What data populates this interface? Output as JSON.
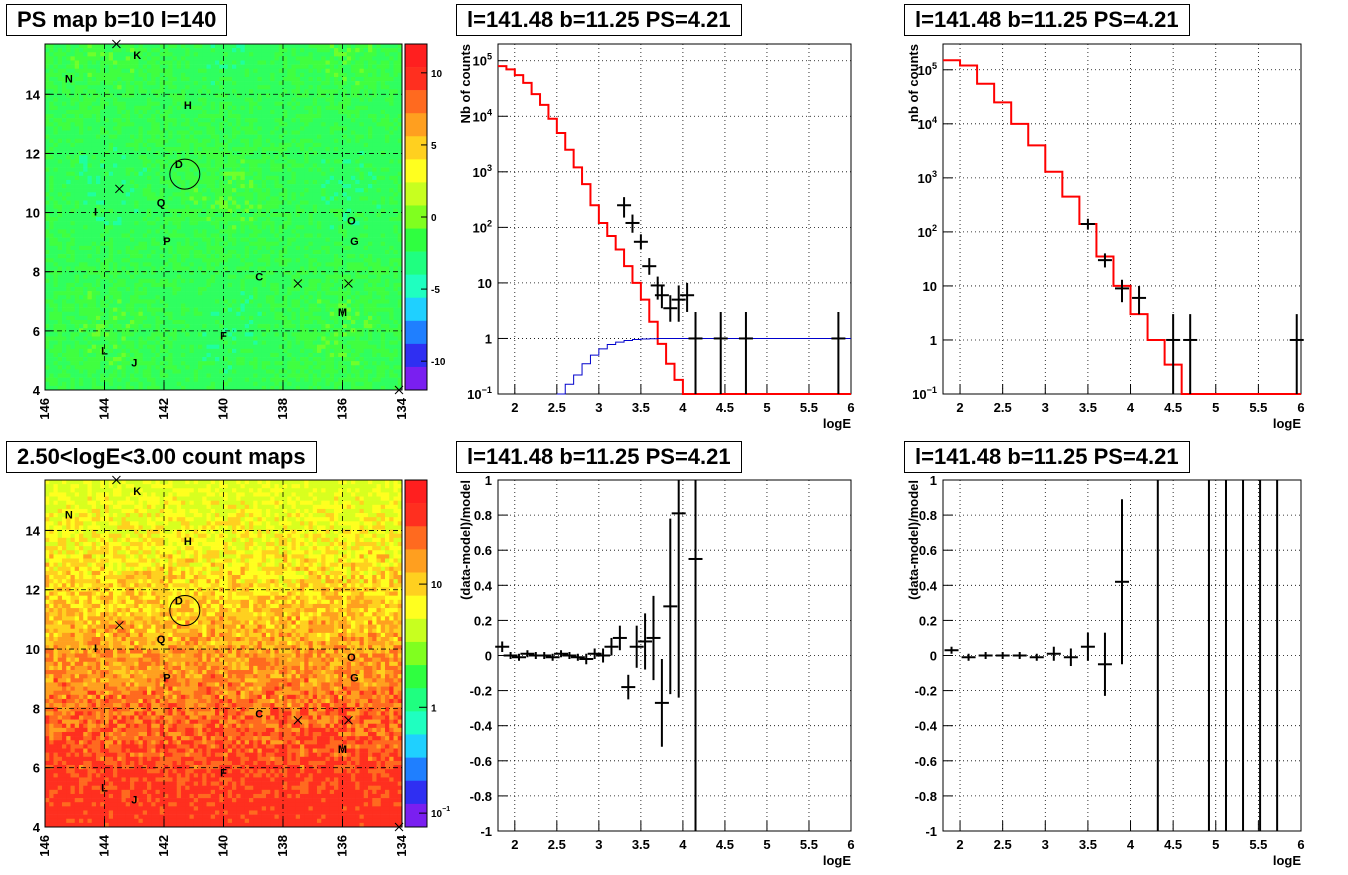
{
  "chart_data": [
    {
      "type": "heatmap",
      "title": "PS map b=10 l=140",
      "xticks": [
        "146",
        "144",
        "142",
        "140",
        "138",
        "136",
        "134"
      ],
      "yticks": [
        "4",
        "6",
        "8",
        "10",
        "12",
        "14"
      ],
      "xlim": [
        146,
        134
      ],
      "ylim": [
        4,
        15.7
      ],
      "zticks": [
        "10",
        "5",
        "0",
        "-5",
        "-10"
      ],
      "zlim": [
        -12,
        12
      ],
      "labels": [
        {
          "t": "K",
          "l": 142.9,
          "b": 15.2
        },
        {
          "t": "N",
          "l": 145.2,
          "b": 14.4
        },
        {
          "t": "H",
          "l": 141.2,
          "b": 13.5
        },
        {
          "t": "D",
          "l": 141.5,
          "b": 11.5
        },
        {
          "t": "Q",
          "l": 142.1,
          "b": 10.2
        },
        {
          "t": "I",
          "l": 144.3,
          "b": 9.9
        },
        {
          "t": "P",
          "l": 141.9,
          "b": 8.9
        },
        {
          "t": "C",
          "l": 138.8,
          "b": 7.7
        },
        {
          "t": "O",
          "l": 135.7,
          "b": 9.6
        },
        {
          "t": "G",
          "l": 135.6,
          "b": 8.9
        },
        {
          "t": "M",
          "l": 136.0,
          "b": 6.5
        },
        {
          "t": "F",
          "l": 140.0,
          "b": 5.7
        },
        {
          "t": "L",
          "l": 144.0,
          "b": 5.2
        },
        {
          "t": "J",
          "l": 143.0,
          "b": 4.8
        }
      ],
      "crosses": [
        {
          "l": 143.6,
          "b": 15.7
        },
        {
          "l": 143.5,
          "b": 10.8
        },
        {
          "l": 137.5,
          "b": 7.6
        },
        {
          "l": 135.8,
          "b": 7.6
        },
        {
          "l": 134.1,
          "b": 4.0
        }
      ],
      "circle": {
        "l": 141.3,
        "b": 11.3
      },
      "colors": [
        "#7a1ff0",
        "#2f2ff2",
        "#1f7fff",
        "#1fd0ff",
        "#1fffc0",
        "#1fff80",
        "#2fff40",
        "#80ff1f",
        "#c8ff1f",
        "#ffff1f",
        "#ffd01f",
        "#ff9f1f",
        "#ff6a1f",
        "#ff2f1f",
        "#ff1f1f"
      ]
    },
    {
      "type": "line",
      "title": "l=141.48 b=11.25 PS=4.21",
      "xlabel": "logE",
      "ylabel": "Nb of counts",
      "xlim": [
        1.8,
        6
      ],
      "ylim": [
        0.1,
        200000
      ],
      "yscale": "log",
      "xticks": [
        "2",
        "2.5",
        "3",
        "3.5",
        "4",
        "4.5",
        "5",
        "5.5",
        "6"
      ],
      "yticks": [
        "10^-1",
        "1",
        "10",
        "10^2",
        "10^3",
        "10^4",
        "10^5"
      ],
      "series": [
        {
          "style": "step",
          "color": "#ff0000",
          "x": [
            1.8,
            1.9,
            2.0,
            2.1,
            2.2,
            2.3,
            2.4,
            2.5,
            2.6,
            2.7,
            2.8,
            2.9,
            3.0,
            3.1,
            3.2,
            3.3,
            3.4,
            3.5,
            3.6,
            3.7,
            3.8,
            3.9,
            4.0,
            4.1,
            4.2,
            4.3
          ],
          "y": [
            80000,
            70000,
            55000,
            40000,
            25000,
            16000,
            9000,
            5000,
            2500,
            1200,
            600,
            250,
            120,
            70,
            40,
            20,
            10,
            5,
            2,
            0.8,
            0.35,
            0.18,
            0.1,
            0.1,
            0.1,
            0.1
          ]
        },
        {
          "style": "step",
          "color": "#0000cc",
          "x": [
            2.5,
            2.6,
            2.7,
            2.8,
            2.9,
            3.0,
            3.1,
            3.2,
            3.3,
            3.4,
            3.5,
            3.6,
            3.7,
            3.8,
            3.9,
            4.0,
            4.5,
            5.0,
            5.5,
            6.0
          ],
          "y": [
            0.1,
            0.15,
            0.22,
            0.35,
            0.5,
            0.65,
            0.78,
            0.86,
            0.92,
            0.96,
            0.98,
            0.99,
            1,
            1,
            1,
            1,
            1,
            1,
            1,
            1
          ]
        },
        {
          "style": "points",
          "color": "#000000",
          "x": [
            3.3,
            3.4,
            3.5,
            3.6,
            3.7,
            3.75,
            3.85,
            3.95,
            4.05,
            4.15,
            4.45,
            4.75,
            5.85
          ],
          "y": [
            250,
            120,
            55,
            20,
            9,
            6,
            3.5,
            5,
            6,
            1,
            1,
            1,
            1
          ],
          "err": [
            [
              150,
              350
            ],
            [
              80,
              170
            ],
            [
              40,
              75
            ],
            [
              14,
              28
            ],
            [
              5,
              13
            ],
            [
              3.5,
              9
            ],
            [
              2,
              6
            ],
            [
              2,
              9
            ],
            [
              3,
              10
            ],
            [
              0.1,
              3
            ],
            [
              0.1,
              3
            ],
            [
              0.1,
              3
            ],
            [
              0.1,
              3
            ]
          ]
        }
      ]
    },
    {
      "type": "line",
      "title": "l=141.48 b=11.25 PS=4.21",
      "xlabel": "logE",
      "ylabel": "nb of counts",
      "xlim": [
        1.8,
        6
      ],
      "ylim": [
        0.1,
        300000
      ],
      "yscale": "log",
      "xticks": [
        "2",
        "2.5",
        "3",
        "3.5",
        "4",
        "4.5",
        "5",
        "5.5",
        "6"
      ],
      "yticks": [
        "10^-1",
        "1",
        "10",
        "10^2",
        "10^3",
        "10^4",
        "10^5"
      ],
      "series": [
        {
          "style": "step",
          "color": "#ff0000",
          "x": [
            1.8,
            2.0,
            2.2,
            2.4,
            2.6,
            2.8,
            3.0,
            3.2,
            3.4,
            3.6,
            3.8,
            4.0,
            4.2,
            4.4,
            4.6,
            4.8,
            5.0,
            5.2,
            5.4,
            5.6,
            5.8,
            6.0
          ],
          "y": [
            150000,
            120000,
            55000,
            25000,
            10000,
            4000,
            1300,
            450,
            140,
            35,
            10,
            3,
            1,
            0.35,
            0.1,
            0.1,
            0.1,
            0.1,
            0.1,
            0.1,
            0.1,
            0.1
          ]
        },
        {
          "style": "points",
          "color": "#000000",
          "x": [
            3.5,
            3.7,
            3.9,
            4.1,
            4.5,
            4.7,
            5.95
          ],
          "y": [
            140,
            30,
            9,
            6,
            1,
            1,
            1
          ],
          "err": [
            [
              110,
              175
            ],
            [
              22,
              40
            ],
            [
              5,
              13
            ],
            [
              3,
              10
            ],
            [
              0.1,
              3
            ],
            [
              0.1,
              3
            ],
            [
              0.1,
              3
            ]
          ]
        }
      ]
    },
    {
      "type": "heatmap",
      "title": "2.50<logE<3.00 count maps",
      "xticks": [
        "146",
        "144",
        "142",
        "140",
        "138",
        "136",
        "134"
      ],
      "yticks": [
        "4",
        "6",
        "8",
        "10",
        "12",
        "14"
      ],
      "xlim": [
        146,
        134
      ],
      "ylim": [
        4,
        15.7
      ],
      "zticks": [
        "10",
        "1",
        "10^-1"
      ],
      "labels": [
        {
          "t": "K",
          "l": 142.9,
          "b": 15.2
        },
        {
          "t": "N",
          "l": 145.2,
          "b": 14.4
        },
        {
          "t": "H",
          "l": 141.2,
          "b": 13.5
        },
        {
          "t": "D",
          "l": 141.5,
          "b": 11.5
        },
        {
          "t": "Q",
          "l": 142.1,
          "b": 10.2
        },
        {
          "t": "I",
          "l": 144.3,
          "b": 9.9
        },
        {
          "t": "P",
          "l": 141.9,
          "b": 8.9
        },
        {
          "t": "C",
          "l": 138.8,
          "b": 7.7
        },
        {
          "t": "O",
          "l": 135.7,
          "b": 9.6
        },
        {
          "t": "G",
          "l": 135.6,
          "b": 8.9
        },
        {
          "t": "M",
          "l": 136.0,
          "b": 6.5
        },
        {
          "t": "F",
          "l": 140.0,
          "b": 5.7
        },
        {
          "t": "L",
          "l": 144.0,
          "b": 5.2
        },
        {
          "t": "J",
          "l": 143.0,
          "b": 4.8
        }
      ],
      "crosses": [
        {
          "l": 143.6,
          "b": 15.7
        },
        {
          "l": 143.5,
          "b": 10.8
        },
        {
          "l": 137.5,
          "b": 7.6
        },
        {
          "l": 135.8,
          "b": 7.6
        },
        {
          "l": 134.1,
          "b": 4.0
        }
      ],
      "circle": {
        "l": 141.3,
        "b": 11.3
      },
      "colors": [
        "#7a1ff0",
        "#2f2ff2",
        "#1f7fff",
        "#1fd0ff",
        "#1fffc0",
        "#1fff80",
        "#2fff40",
        "#80ff1f",
        "#c8ff1f",
        "#ffff1f",
        "#ffd01f",
        "#ff9f1f",
        "#ff6a1f",
        "#ff2f1f",
        "#ff1f1f"
      ]
    },
    {
      "type": "scatter",
      "title": "l=141.48 b=11.25 PS=4.21",
      "xlabel": "logE",
      "ylabel": "(data-model)/model",
      "xlim": [
        1.8,
        6
      ],
      "ylim": [
        -1,
        1
      ],
      "xticks": [
        "2",
        "2.5",
        "3",
        "3.5",
        "4",
        "4.5",
        "5",
        "5.5",
        "6"
      ],
      "yticks": [
        "-1",
        "-0.8",
        "-0.6",
        "-0.4",
        "-0.2",
        "0",
        "0.2",
        "0.4",
        "0.6",
        "0.8",
        "1"
      ],
      "series": [
        {
          "style": "points",
          "color": "#000000",
          "x": [
            1.85,
            1.95,
            2.05,
            2.15,
            2.25,
            2.35,
            2.45,
            2.55,
            2.65,
            2.75,
            2.85,
            2.95,
            3.05,
            3.15,
            3.25,
            3.35,
            3.45,
            3.55,
            3.65,
            3.75,
            3.85,
            3.95,
            4.15
          ],
          "y": [
            0.05,
            0.0,
            -0.01,
            0.01,
            0.0,
            0.0,
            -0.01,
            0.01,
            0.0,
            -0.01,
            -0.02,
            0.01,
            0.0,
            0.05,
            0.1,
            -0.18,
            0.05,
            0.08,
            0.1,
            -0.27,
            0.28,
            0.81,
            0.55
          ],
          "err": [
            0.03,
            0.02,
            0.02,
            0.02,
            0.02,
            0.02,
            0.02,
            0.02,
            0.02,
            0.02,
            0.03,
            0.03,
            0.04,
            0.05,
            0.07,
            0.07,
            0.12,
            0.16,
            0.24,
            0.25,
            0.5,
            1.05,
            1.6
          ]
        }
      ]
    },
    {
      "type": "scatter",
      "title": "l=141.48 b=11.25 PS=4.21",
      "xlabel": "logE",
      "ylabel": "(data-model)/model",
      "xlim": [
        1.8,
        6
      ],
      "ylim": [
        -1,
        1
      ],
      "xticks": [
        "2",
        "2.5",
        "3",
        "3.5",
        "4",
        "4.5",
        "5",
        "5.5",
        "6"
      ],
      "yticks": [
        "-1",
        "-0.8",
        "-0.6",
        "-0.4",
        "-0.2",
        "0",
        "0.2",
        "0.4",
        "0.6",
        "0.8",
        "1"
      ],
      "series": [
        {
          "style": "points",
          "color": "#000000",
          "x": [
            1.9,
            2.1,
            2.3,
            2.5,
            2.7,
            2.9,
            3.1,
            3.3,
            3.5,
            3.7,
            3.9
          ],
          "y": [
            0.03,
            -0.01,
            0.0,
            0.0,
            0.0,
            -0.01,
            0.01,
            -0.01,
            0.05,
            -0.05,
            0.42
          ],
          "err": [
            0.02,
            0.02,
            0.02,
            0.02,
            0.02,
            0.02,
            0.04,
            0.05,
            0.08,
            0.18,
            0.47
          ]
        },
        {
          "style": "vlines",
          "color": "#000000",
          "x": [
            4.32,
            4.92,
            5.12,
            5.32,
            5.52,
            5.72
          ]
        }
      ]
    }
  ]
}
